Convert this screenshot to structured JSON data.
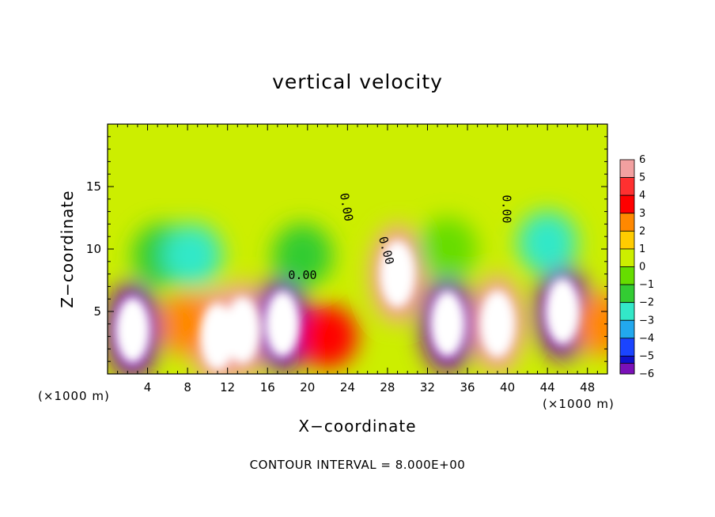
{
  "chart_data": {
    "type": "heatmap",
    "title": "vertical velocity",
    "xlabel": "X−coordinate",
    "ylabel": "Z−coordinate",
    "x_unit_label": "(×1000 m)",
    "x_unit_label_right": "(×1000 m)",
    "footer": "CONTOUR INTERVAL = 8.000E+00",
    "xlim": [
      0,
      50
    ],
    "ylim": [
      0,
      20
    ],
    "x_ticks": [
      "4",
      "8",
      "12",
      "16",
      "20",
      "24",
      "28",
      "32",
      "36",
      "40",
      "44",
      "48"
    ],
    "x_tick_values": [
      4,
      8,
      12,
      16,
      20,
      24,
      28,
      32,
      36,
      40,
      44,
      48
    ],
    "y_ticks": [
      "5",
      "10",
      "15"
    ],
    "y_tick_values": [
      5,
      10,
      15
    ],
    "colorbar": {
      "labels": [
        "6",
        "5",
        "4",
        "3",
        "2",
        "1",
        "0",
        "−1",
        "−2",
        "−3",
        "−4",
        "−5",
        "−6"
      ],
      "values": [
        6,
        5,
        4,
        3,
        2,
        1,
        0,
        -1,
        -2,
        -3,
        -4,
        -5,
        -6
      ],
      "colors": [
        "#f2a0a0",
        "#ff3030",
        "#ff0000",
        "#ff8800",
        "#ffcc00",
        "#ccee00",
        "#66dd00",
        "#33cc33",
        "#33e8c8",
        "#22a8ee",
        "#1a44ff",
        "#1010cc",
        "#7a10b8"
      ]
    },
    "contour_labels": [
      "0.00",
      "0.00",
      "0.00",
      "0.00"
    ],
    "cells": [
      {
        "x": 2.5,
        "z": 3.5,
        "w": -6
      },
      {
        "x": 5.5,
        "z": 9.5,
        "w": -1
      },
      {
        "x": 11,
        "z": 3,
        "w": 6
      },
      {
        "x": 13.5,
        "z": 3.5,
        "w": 6
      },
      {
        "x": 8,
        "z": 4,
        "w": 3
      },
      {
        "x": 17.5,
        "z": 4,
        "w": -6
      },
      {
        "x": 22,
        "z": 3,
        "w": 4
      },
      {
        "x": 29,
        "z": 8,
        "w": 6
      },
      {
        "x": 34,
        "z": 4,
        "w": -6
      },
      {
        "x": 39,
        "z": 4,
        "w": 6
      },
      {
        "x": 45.5,
        "z": 5,
        "w": -6
      },
      {
        "x": 49.5,
        "z": 4,
        "w": 3
      },
      {
        "x": 19.5,
        "z": 9.5,
        "w": -1
      },
      {
        "x": 34,
        "z": 10,
        "w": 0
      },
      {
        "x": 44,
        "z": 10.5,
        "w": -2
      },
      {
        "x": 8.5,
        "z": 9.5,
        "w": -2
      }
    ]
  }
}
